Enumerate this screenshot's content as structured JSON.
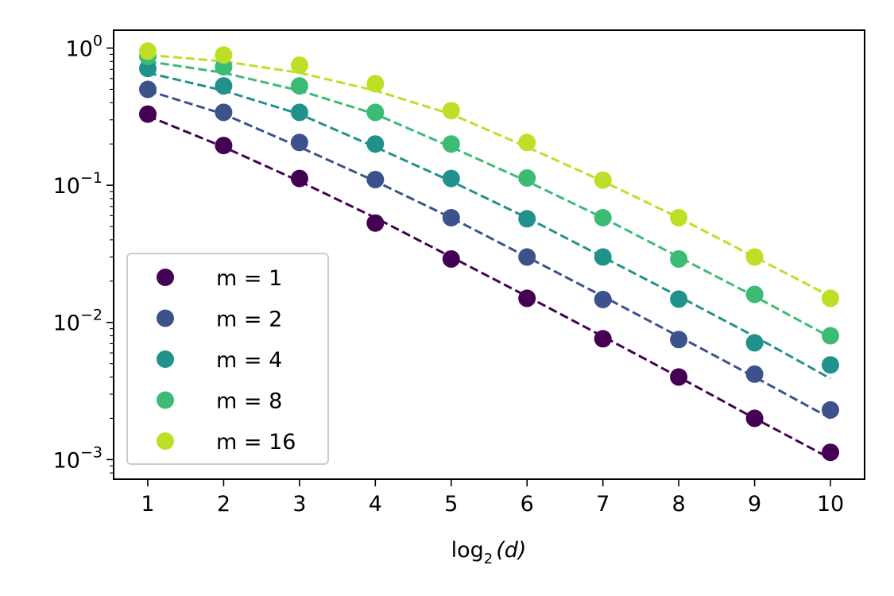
{
  "chart_data": {
    "type": "scatter",
    "title": "",
    "xlabel": "log",
    "xlabel_sub": "2",
    "xlabel_arg": "(d)",
    "ylabel": "",
    "yscale": "log",
    "xlim": [
      0.55,
      10.45
    ],
    "ylim": [
      0.00072,
      1.35
    ],
    "x": [
      1,
      2,
      3,
      4,
      5,
      6,
      7,
      8,
      9,
      10
    ],
    "x_tick_labels": [
      "1",
      "2",
      "3",
      "4",
      "5",
      "6",
      "7",
      "8",
      "9",
      "10"
    ],
    "y_ticks": [
      {
        "value": 1,
        "base": "10",
        "exp": "0"
      },
      {
        "value": 0.1,
        "base": "10",
        "exp": "−1"
      },
      {
        "value": 0.01,
        "base": "10",
        "exp": "−2"
      },
      {
        "value": 0.001,
        "base": "10",
        "exp": "−3"
      }
    ],
    "grid": false,
    "legend_position": "lower-left",
    "series": [
      {
        "name": "m = 1",
        "color": "#440154",
        "points": [
          0.33,
          0.195,
          0.112,
          0.053,
          0.029,
          0.015,
          0.0076,
          0.004,
          0.002,
          0.00113
        ],
        "fit": [
          0.32,
          0.19,
          0.107,
          0.058,
          0.03,
          0.0155,
          0.0079,
          0.004,
          0.002,
          0.00102
        ]
      },
      {
        "name": "m = 2",
        "color": "#3b528b",
        "points": [
          0.5,
          0.34,
          0.205,
          0.11,
          0.058,
          0.03,
          0.0147,
          0.0075,
          0.0042,
          0.0023
        ],
        "fit": [
          0.49,
          0.33,
          0.19,
          0.107,
          0.058,
          0.03,
          0.0155,
          0.0079,
          0.004,
          0.002
        ]
      },
      {
        "name": "m = 4",
        "color": "#21918c",
        "points": [
          0.71,
          0.53,
          0.34,
          0.2,
          0.112,
          0.057,
          0.03,
          0.0148,
          0.0071,
          0.0049
        ],
        "fit": [
          0.66,
          0.49,
          0.33,
          0.19,
          0.107,
          0.058,
          0.03,
          0.0155,
          0.0079,
          0.0039
        ]
      },
      {
        "name": "m = 8",
        "color": "#3cbb75",
        "points": [
          0.87,
          0.73,
          0.53,
          0.34,
          0.2,
          0.113,
          0.058,
          0.029,
          0.016,
          0.008
        ],
        "fit": [
          0.8,
          0.66,
          0.49,
          0.33,
          0.19,
          0.107,
          0.058,
          0.03,
          0.0155,
          0.0078
        ]
      },
      {
        "name": "m = 16",
        "color": "#bddf26",
        "points": [
          0.95,
          0.89,
          0.75,
          0.55,
          0.35,
          0.205,
          0.109,
          0.058,
          0.03,
          0.015
        ],
        "fit": [
          0.89,
          0.8,
          0.66,
          0.49,
          0.33,
          0.19,
          0.107,
          0.058,
          0.03,
          0.0155
        ]
      }
    ]
  }
}
